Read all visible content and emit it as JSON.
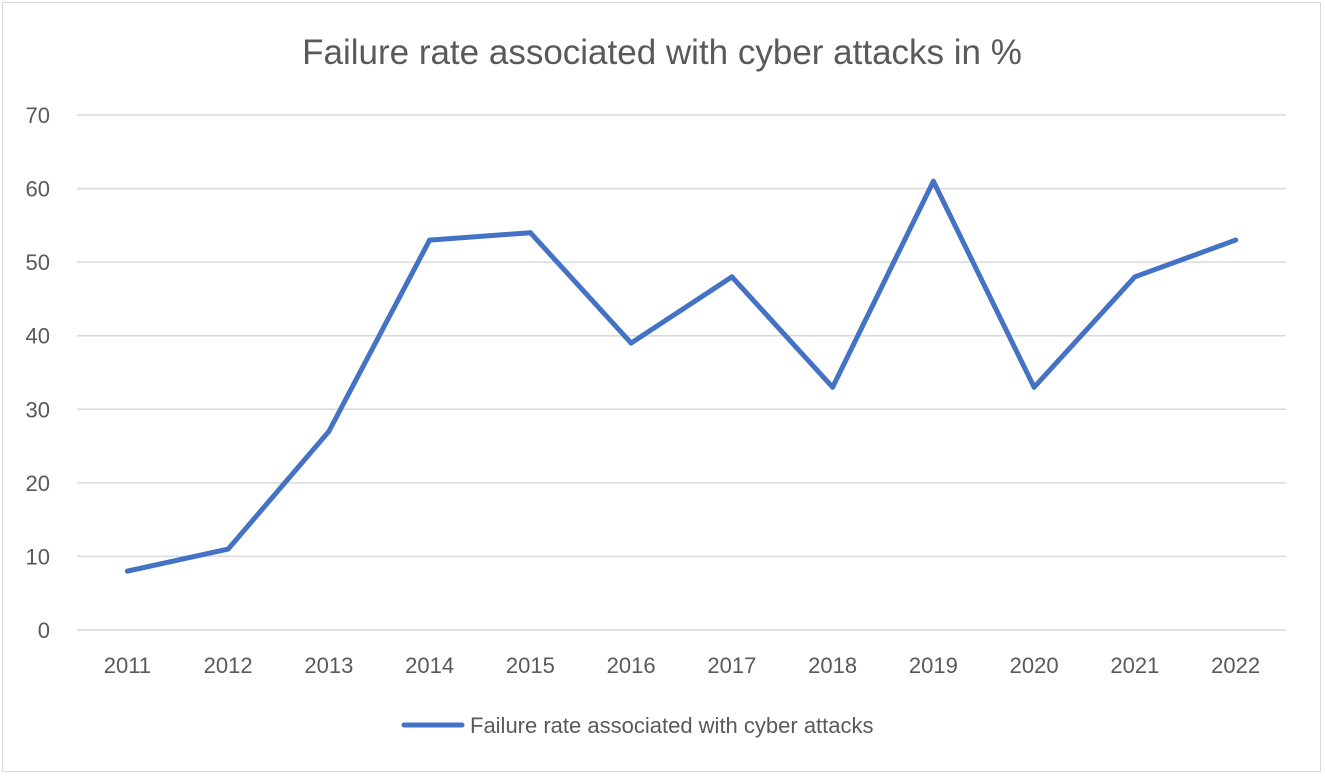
{
  "chart_data": {
    "type": "line",
    "title": "Failure rate associated with cyber attacks in %",
    "xlabel": "",
    "ylabel": "",
    "categories": [
      "2011",
      "2012",
      "2013",
      "2014",
      "2015",
      "2016",
      "2017",
      "2018",
      "2019",
      "2020",
      "2021",
      "2022"
    ],
    "series": [
      {
        "name": "Failure rate associated with cyber attacks",
        "values": [
          8,
          11,
          27,
          53,
          54,
          39,
          48,
          33,
          61,
          33,
          48,
          53
        ],
        "color": "#4472C4"
      }
    ],
    "ylim": [
      0,
      70
    ],
    "yticks": [
      "0",
      "10",
      "20",
      "30",
      "40",
      "50",
      "60",
      "70"
    ],
    "grid": true,
    "legend_position": "bottom"
  }
}
